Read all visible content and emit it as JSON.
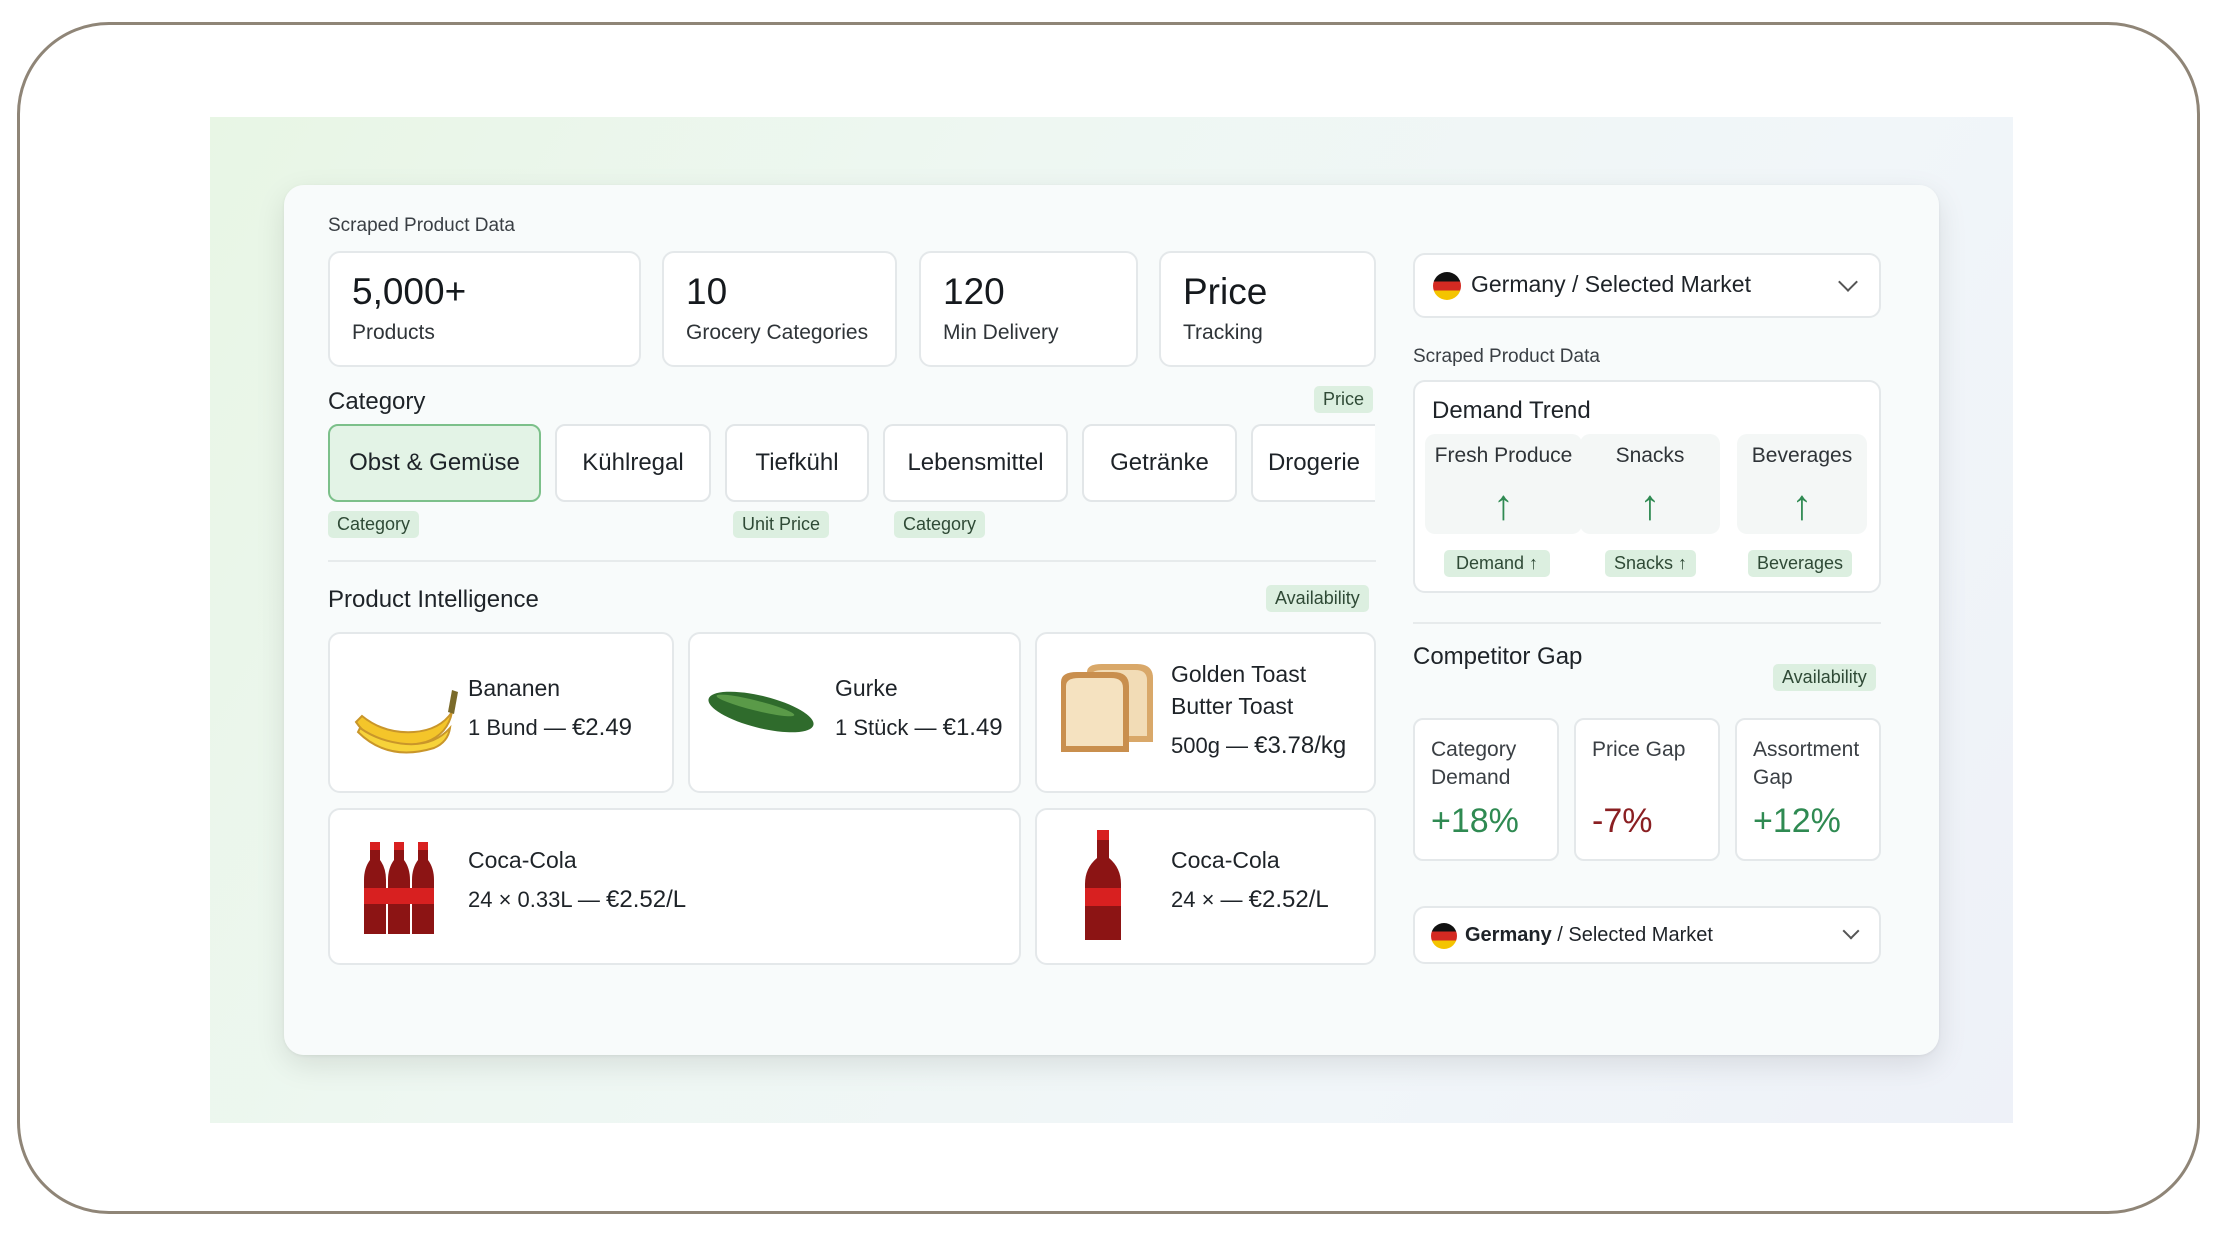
{
  "colors": {
    "accent": "#2f8a52",
    "negative": "#8a1f22",
    "tag_bg": "#dcefe0",
    "active_tab_border": "#7cc08a"
  },
  "header": {
    "label": "Scraped Product Data"
  },
  "stats": [
    {
      "value": "5,000+",
      "label": "Products"
    },
    {
      "value": "10",
      "label": "Grocery Categories"
    },
    {
      "value": "120",
      "label": "Min Delivery"
    },
    {
      "value": "Price",
      "label": "Tracking"
    }
  ],
  "category": {
    "title": "Category",
    "price_tag": "Price",
    "tabs": [
      "Obst & Gemüse",
      "Kühlregal",
      "Tiefkühl",
      "Lebensmittel",
      "Getränke",
      "Drogerie"
    ],
    "active_tab": "Obst & Gemüse",
    "tags": [
      "Category",
      "Unit Price",
      "Category"
    ]
  },
  "product_intelligence": {
    "title": "Product Intelligence",
    "availability_tag": "Availability",
    "products": [
      {
        "name": "Bananen",
        "qty": "1 Bund — ",
        "price": "€2.49",
        "icon": "banana-icon"
      },
      {
        "name": "Gurke",
        "qty": "1 Stück — ",
        "price": "€1.49",
        "icon": "cucumber-icon"
      },
      {
        "name": "Golden Toast Butter Toast",
        "qty": "500g — ",
        "price": "€3.78/kg",
        "icon": "toast-icon"
      },
      {
        "name": "Coca-Cola",
        "qty": "24 × 0.33L — ",
        "price": "€2.52/L",
        "icon": "cola-bottles-icon"
      },
      {
        "name": "Coca-Cola",
        "qty": "24 × — ",
        "price": "€2.52/L",
        "icon": "cola-bottle-icon"
      }
    ]
  },
  "market_selector": {
    "country": "Germany",
    "suffix": "/ Selected Market",
    "icon": "germany-flag-icon"
  },
  "right_label": "Scraped Product Data",
  "demand_trend": {
    "title": "Demand Trend",
    "items": [
      {
        "label": "Fresh Produce",
        "arrow": "↑",
        "tag": "Demand ↑"
      },
      {
        "label": "Snacks",
        "arrow": "↑",
        "tag": "Snacks ↑"
      },
      {
        "label": "Beverages",
        "arrow": "↑",
        "tag": "Beverages"
      }
    ]
  },
  "competitor_gap": {
    "title": "Competitor Gap",
    "availability_tag": "Availability",
    "cards": [
      {
        "label_line1": "Category",
        "label_line2": "Demand",
        "value": "+18%",
        "color": "#2f8a52"
      },
      {
        "label_line1": "Price Gap",
        "label_line2": "",
        "value": "-7%",
        "color": "#8a1f22"
      },
      {
        "label_line1": "Assortment",
        "label_line2": "Gap",
        "value": "+12%",
        "color": "#2f8a52"
      }
    ]
  },
  "market_selector_bottom": {
    "country": "Germany",
    "suffix": "/ Selected Market"
  }
}
